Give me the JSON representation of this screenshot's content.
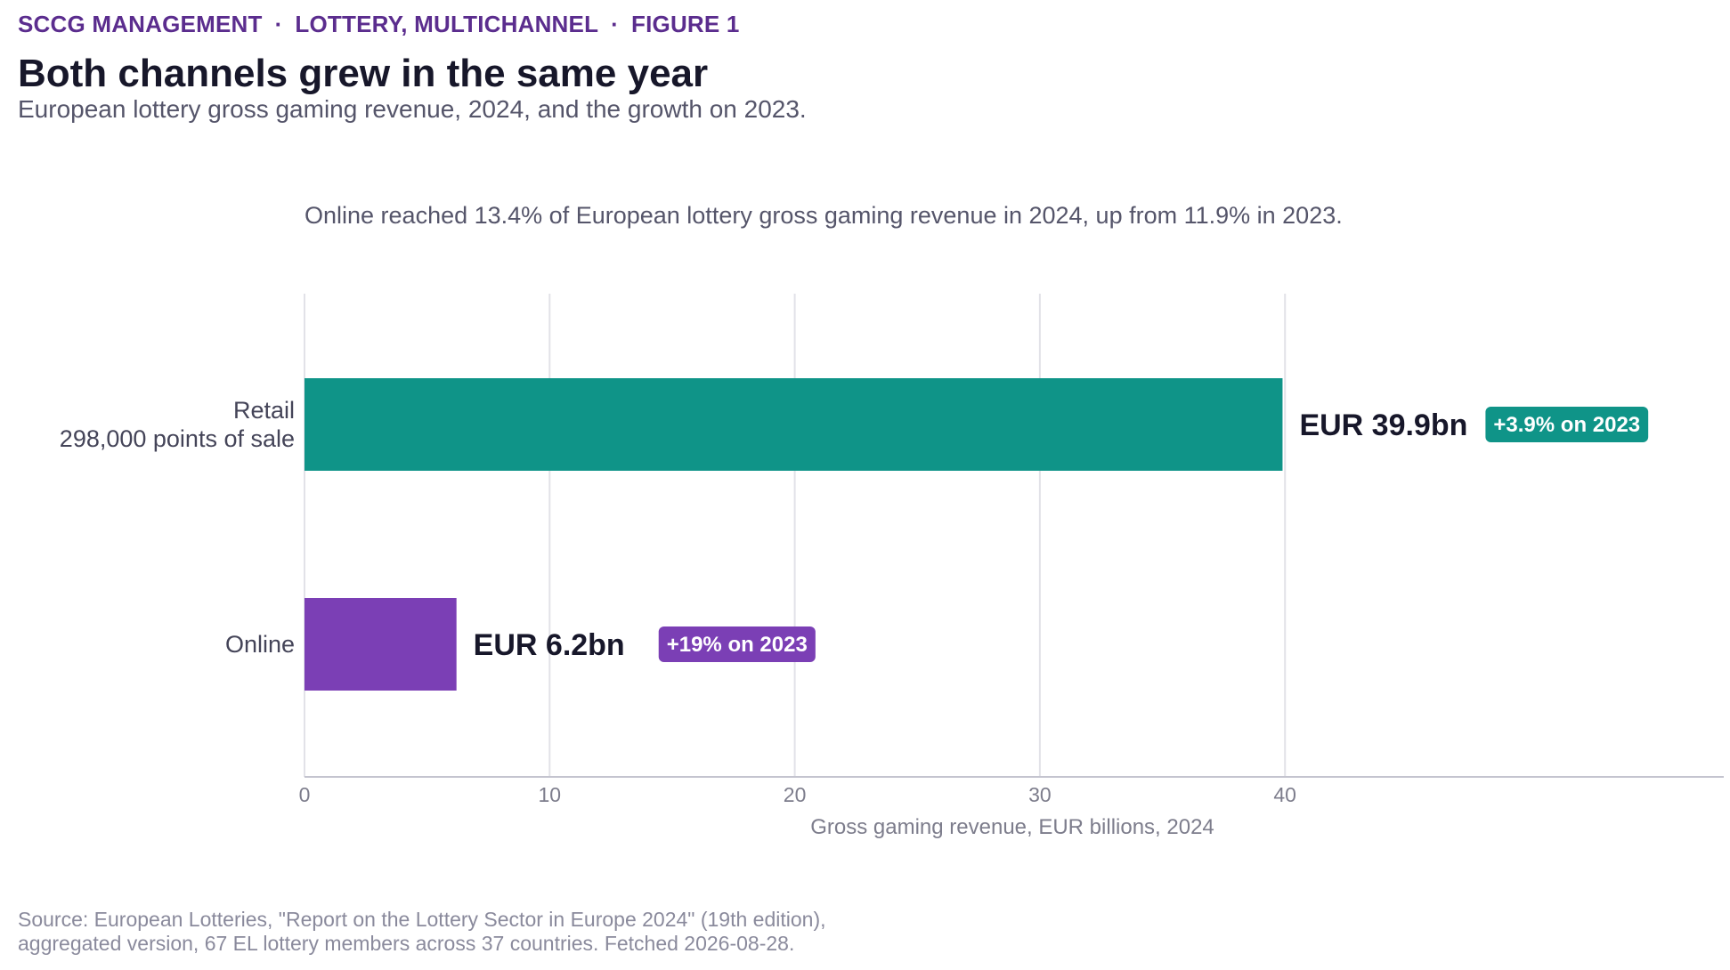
{
  "header": {
    "kicker": [
      "SCCG MANAGEMENT",
      "LOTTERY, MULTICHANNEL",
      "FIGURE 1"
    ],
    "separator": "·",
    "title": "Both channels grew in the same year",
    "subtitle": "European lottery gross gaming revenue, 2024, and the growth on 2023."
  },
  "chart_data": {
    "type": "bar",
    "orientation": "horizontal",
    "annotation": "Online reached 13.4% of European lottery gross gaming revenue in 2024, up from 11.9% in 2023.",
    "categories": [
      {
        "label_lines": [
          "Retail",
          "298,000 points of sale"
        ]
      },
      {
        "label_lines": [
          "Online"
        ]
      }
    ],
    "values": [
      39.9,
      6.2
    ],
    "value_labels": [
      "EUR 39.9bn",
      "EUR 6.2bn"
    ],
    "growth_labels": [
      "+3.9% on 2023",
      "+19% on 2023"
    ],
    "colors": [
      "#0f9488",
      "#7b3fb5"
    ],
    "xlabel": "Gross gaming revenue, EUR billions, 2024",
    "xticks": [
      0,
      10,
      20,
      30,
      40
    ],
    "xlim": [
      0,
      58
    ],
    "grid": true
  },
  "footer": {
    "source_lines": [
      "Source: European Lotteries, \"Report on the Lottery Sector in Europe 2024\" (19th edition),",
      "aggregated version, 67 EL lottery members across 37 countries. Fetched 2026-08-28."
    ]
  }
}
